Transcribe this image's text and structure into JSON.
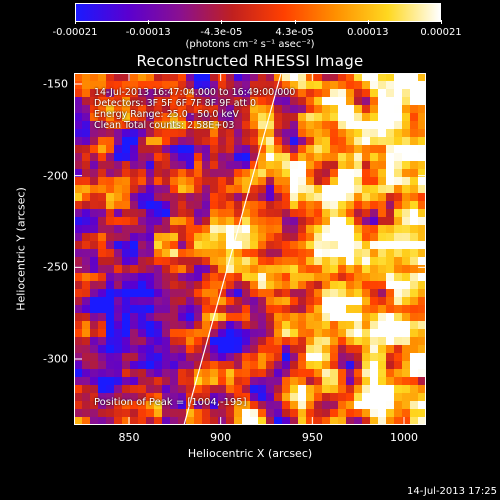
{
  "colorbar": {
    "ticks": [
      "-0.00021",
      "-0.00013",
      "-4.3e-05",
      "4.3e-05",
      "0.00013",
      "0.00021"
    ],
    "units": "(photons cm⁻² s⁻¹ asec⁻²)",
    "range": [
      -0.00021,
      0.00021
    ],
    "colormap": [
      "#1a1aff",
      "#5a00d0",
      "#8a1090",
      "#c02020",
      "#ff4000",
      "#ff9000",
      "#ffd820",
      "#ffffff"
    ]
  },
  "info_lines": [
    "14-Jul-2013 16:47:04.000 to 16:49:00.000",
    "Detectors: 3F 5F 6F 7F 8F 9F  att 0",
    "Energy Range: 25.0 - 50.0 keV",
    "Clean    Total counts: 2.58E+03"
  ],
  "peak_text": "Position of Peak = [1004,-195]",
  "timestamp": "14-Jul-2013 17:25",
  "chart_data": {
    "type": "heatmap",
    "title": "Reconstructed RHESSI Image",
    "xlabel": "Heliocentric X (arcsec)",
    "ylabel": "Heliocentric Y (arcsec)",
    "xlim": [
      820,
      1012
    ],
    "ylim": [
      -336,
      -144
    ],
    "x_ticks": [
      "850",
      "900",
      "950",
      "1000"
    ],
    "y_ticks": [
      "-300",
      "-250",
      "-200",
      "-150"
    ],
    "limb_line": [
      [
        880,
        -336
      ],
      [
        933,
        -144
      ]
    ],
    "grid": false
  }
}
